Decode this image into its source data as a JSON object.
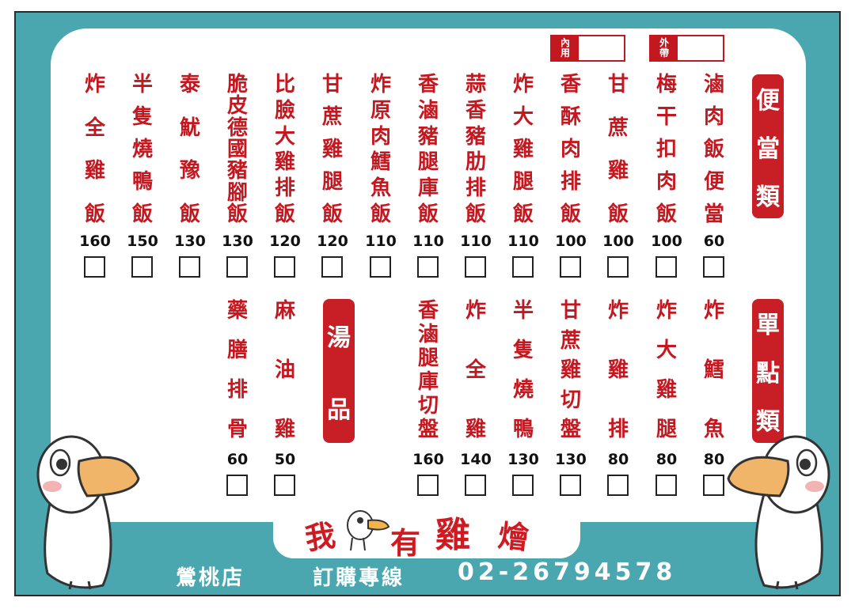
{
  "tags": {
    "dine_in": "內用",
    "takeout": "外帶"
  },
  "categories": {
    "bento": "便當類",
    "single": "單點類",
    "soup": "湯品"
  },
  "bento_items": [
    {
      "name": "滷肉飯便當",
      "price": "60"
    },
    {
      "name": "梅干扣肉飯",
      "price": "100"
    },
    {
      "name": "甘蔗雞飯",
      "price": "100"
    },
    {
      "name": "香酥肉排飯",
      "price": "100"
    },
    {
      "name": "炸大雞腿飯",
      "price": "110"
    },
    {
      "name": "蒜香豬肋排飯",
      "price": "110"
    },
    {
      "name": "香滷豬腿庫飯",
      "price": "110"
    },
    {
      "name": "炸原肉鱈魚飯",
      "price": "110"
    },
    {
      "name": "甘蔗雞腿飯",
      "price": "120"
    },
    {
      "name": "比臉大雞排飯",
      "price": "120"
    },
    {
      "name": "脆皮德國豬腳飯",
      "price": "130"
    },
    {
      "name": "泰魷豫飯",
      "price": "130"
    },
    {
      "name": "半隻燒鴨飯",
      "price": "150"
    },
    {
      "name": "炸全雞飯",
      "price": "160"
    }
  ],
  "single_items": [
    {
      "name": "炸鱈魚",
      "price": "80"
    },
    {
      "name": "炸大雞腿",
      "price": "80"
    },
    {
      "name": "炸雞排",
      "price": "80"
    },
    {
      "name": "甘蔗雞切盤",
      "price": "130"
    },
    {
      "name": "半隻燒鴨",
      "price": "130"
    },
    {
      "name": "炸全雞",
      "price": "140"
    },
    {
      "name": "香滷腿庫切盤",
      "price": "160"
    }
  ],
  "soup_items": [
    {
      "name": "麻油雞",
      "price": "50"
    },
    {
      "name": "藥膳排骨",
      "price": "60"
    }
  ],
  "logo": {
    "c1": "我",
    "c2": "有",
    "c3": "雞",
    "c4": "燴"
  },
  "footer": {
    "branch": "鶯桃店",
    "hotline_label": "訂購專線",
    "phone": "02-26794578"
  },
  "colors": {
    "red": "#c41820",
    "teal": "#4aa7b0"
  }
}
